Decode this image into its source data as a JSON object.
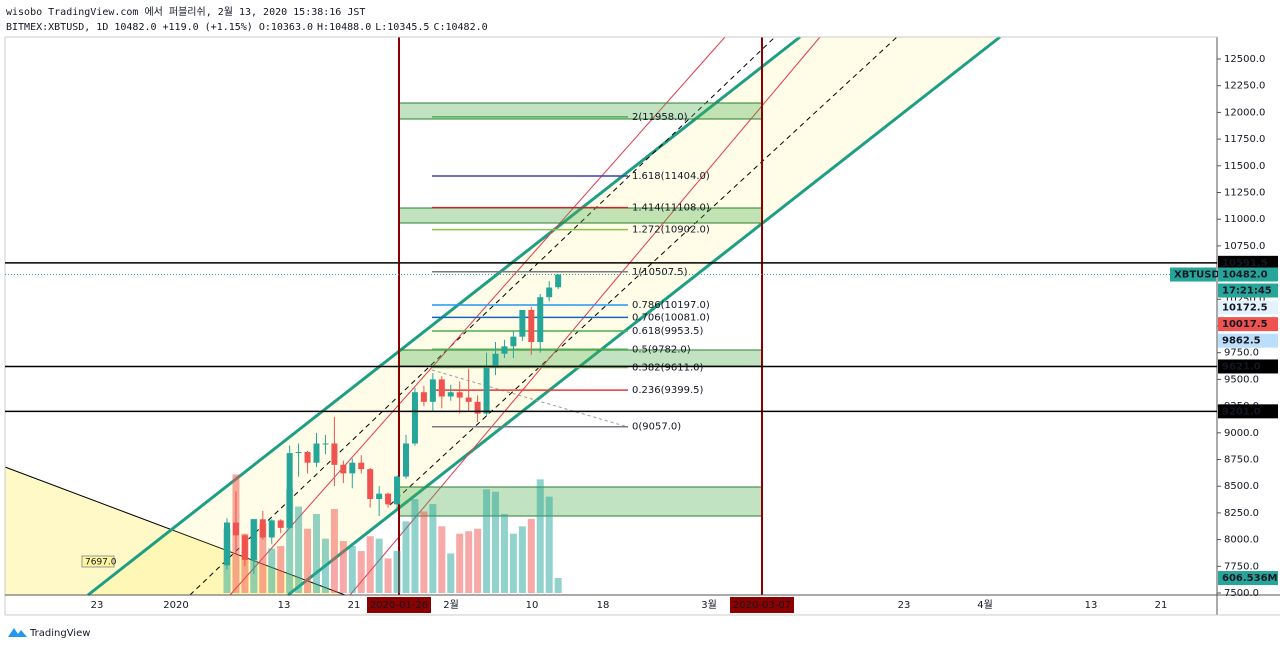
{
  "header": {
    "published": "wisobo TradingView.com 에서 퍼블리쉬, 2월 13, 2020 15:38:16 JST",
    "symbol": "BITMEX:XBTUSD, 1D",
    "price": "10482.0",
    "change": "+119.0 (+1.15%)",
    "ohlc": [
      {
        "key": "O:",
        "value": "10363.0"
      },
      {
        "key": "H:",
        "value": "10488.0"
      },
      {
        "key": "L:",
        "value": "10345.5"
      },
      {
        "key": "C:",
        "value": "10482.0"
      }
    ]
  },
  "footer": {
    "brand": "TradingView"
  },
  "chart_data": {
    "type": "candlestick",
    "up_color": "#26a69a",
    "down_color": "#ef5350",
    "categories": [
      "2020-01-07",
      "2020-01-08",
      "2020-01-09",
      "2020-01-10",
      "2020-01-11",
      "2020-01-12",
      "2020-01-13",
      "2020-01-14",
      "2020-01-15",
      "2020-01-16",
      "2020-01-17",
      "2020-01-18",
      "2020-01-19",
      "2020-01-20",
      "2020-01-21",
      "2020-01-22",
      "2020-01-23",
      "2020-01-24",
      "2020-01-25",
      "2020-01-26",
      "2020-01-27",
      "2020-01-28",
      "2020-01-29",
      "2020-01-30",
      "2020-01-31",
      "2020-02-01",
      "2020-02-02",
      "2020-02-03",
      "2020-02-04",
      "2020-02-05",
      "2020-02-06",
      "2020-02-07",
      "2020-02-08",
      "2020-02-09",
      "2020-02-10",
      "2020-02-11",
      "2020-02-12",
      "2020-02-13"
    ],
    "open": [
      7760,
      8160,
      8040,
      7810,
      8190,
      8020,
      8180,
      8110,
      8810,
      8820,
      8720,
      8900,
      8900,
      8700,
      8620,
      8720,
      8660,
      8380,
      8430,
      8330,
      8590,
      8900,
      9380,
      9290,
      9500,
      9340,
      9380,
      9330,
      9290,
      9180,
      9610,
      9740,
      9810,
      9900,
      10150,
      9850,
      10270,
      10363
    ],
    "high": [
      8200,
      8450,
      8050,
      8190,
      8270,
      8190,
      8190,
      8880,
      8900,
      8830,
      9000,
      8980,
      9150,
      8740,
      8760,
      8790,
      8670,
      8500,
      8440,
      8600,
      8980,
      9420,
      9440,
      9560,
      9530,
      9450,
      9480,
      9600,
      9350,
      9750,
      9850,
      9870,
      9950,
      10150,
      10180,
      10300,
      10420,
      10488
    ],
    "low": [
      7720,
      7870,
      7750,
      7680,
      8000,
      7960,
      8060,
      8100,
      8590,
      8620,
      8680,
      8800,
      8500,
      8530,
      8480,
      8620,
      8300,
      8220,
      8300,
      8280,
      8570,
      8880,
      9250,
      9200,
      9230,
      9300,
      9180,
      9200,
      9100,
      9150,
      9540,
      9700,
      9700,
      9860,
      9730,
      9750,
      10230,
      10345.5
    ],
    "close": [
      8160,
      8040,
      7810,
      8190,
      8020,
      8180,
      8110,
      8810,
      8820,
      8720,
      8900,
      8900,
      8700,
      8620,
      8720,
      8660,
      8380,
      8430,
      8330,
      8590,
      8900,
      9380,
      9290,
      9500,
      9340,
      9380,
      9330,
      9290,
      9180,
      9610,
      9740,
      9810,
      9900,
      10150,
      9850,
      10270,
      10360,
      10482
    ],
    "volume": [
      2600,
      4800,
      2400,
      3000,
      2800,
      1800,
      1900,
      4200,
      3500,
      2600,
      3200,
      2200,
      3400,
      2100,
      1900,
      1700,
      2300,
      2200,
      1400,
      1700,
      2900,
      3800,
      3300,
      3600,
      2700,
      1600,
      2400,
      2500,
      2600,
      4200,
      4100,
      3200,
      2400,
      2700,
      3000,
      4600,
      3900,
      606.536
    ],
    "volume_tag": {
      "value": 606.536,
      "label": "606.536M"
    },
    "ylim": [
      7500,
      12750
    ],
    "yticks": [
      {
        "value": 7500,
        "label": "7500.0"
      },
      {
        "value": 7750,
        "label": "7750.0"
      },
      {
        "value": 8000,
        "label": "8000.0"
      },
      {
        "value": 8250,
        "label": "8250.0"
      },
      {
        "value": 8500,
        "label": "8500.0"
      },
      {
        "value": 8750,
        "label": "8750.0"
      },
      {
        "value": 9000,
        "label": "9000.0"
      },
      {
        "value": 9250,
        "label": "9250.0"
      },
      {
        "value": 9500,
        "label": "9500.0"
      },
      {
        "value": 9750,
        "label": "9750.0"
      },
      {
        "value": 10000,
        "label": "10000.0"
      },
      {
        "value": 10250,
        "label": "10250.0"
      },
      {
        "value": 10500,
        "label": "10500.0"
      },
      {
        "value": 10750,
        "label": "10750.0"
      },
      {
        "value": 11000,
        "label": "11000.0"
      },
      {
        "value": 11250,
        "label": "11250.0"
      },
      {
        "value": 11500,
        "label": "11500.0"
      },
      {
        "value": 11750,
        "label": "11750.0"
      },
      {
        "value": 12000,
        "label": "12000.0"
      },
      {
        "value": 12250,
        "label": "12250.0"
      },
      {
        "value": 12500,
        "label": "12500.0"
      }
    ],
    "xtick_labels": [
      "23",
      "2020",
      "13",
      "21",
      "2020-01-26",
      "2월",
      "10",
      "18",
      "3월",
      "2020-03-07",
      "23",
      "4월",
      "13",
      "21"
    ],
    "hlines": [
      {
        "value": 10591.5,
        "label": "10591.5"
      },
      {
        "value": 9621.0,
        "label": "9621.0"
      },
      {
        "value": 9201.0,
        "label": "9201.0"
      }
    ],
    "symbol_tag": {
      "name": "XBTUSD",
      "value": 10482.0,
      "label": "10482.0",
      "countdown": "17:21:45"
    },
    "price_tags": [
      {
        "value": 10172.5,
        "label": "10172.5",
        "color": "#e3f2fd",
        "text": "#1565c0"
      },
      {
        "value": 10017.5,
        "label": "10017.5",
        "color": "#ef5350",
        "text": "#ffffff"
      },
      {
        "value": 9862.5,
        "label": "9862.5",
        "color": "#bbdefb",
        "text": "#0d47a1"
      }
    ],
    "fib": [
      {
        "value": 11958.0,
        "label": "2(11958.0)",
        "color": "#4caf50"
      },
      {
        "value": 11404.0,
        "label": "1.618(11404.0)",
        "color": "#3f3fb5"
      },
      {
        "value": 11108.0,
        "label": "1.414(11108.0)",
        "color": "#c62828"
      },
      {
        "value": 10902.0,
        "label": "1.272(10902.0)",
        "color": "#8bc34a"
      },
      {
        "value": 10507.5,
        "label": "1(10507.5)",
        "color": "#787b86"
      },
      {
        "value": 10197.0,
        "label": "0.786(10197.0)",
        "color": "#2196f3"
      },
      {
        "value": 10081.0,
        "label": "0.706(10081.0)",
        "color": "#1565c0"
      },
      {
        "value": 9953.5,
        "label": "0.618(9953.5)",
        "color": "#4caf50"
      },
      {
        "value": 9782.0,
        "label": "0.5(9782.0)",
        "color": "#4caf50"
      },
      {
        "value": 9611.0,
        "label": "0.382(9611.0)",
        "color": "#8bc34a"
      },
      {
        "value": 9399.5,
        "label": "0.236(9399.5)",
        "color": "#e53935"
      },
      {
        "value": 9057.0,
        "label": "0(9057.0)",
        "color": "#787b86"
      }
    ],
    "annotation": "7697.0"
  }
}
